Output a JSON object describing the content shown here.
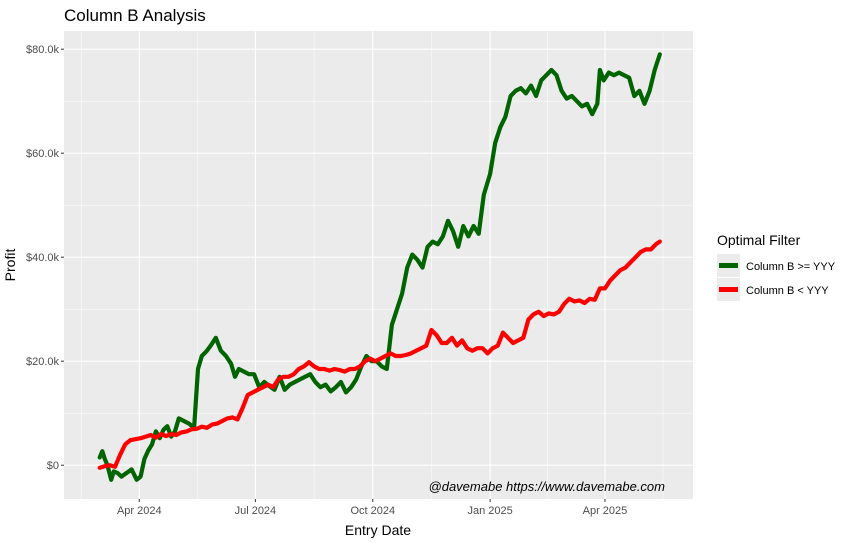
{
  "chart_data": {
    "type": "line",
    "title": "Column B Analysis",
    "xlabel": "Entry Date",
    "ylabel": "Profit",
    "caption": "@davemabe https://www.davemabe.com",
    "x_ticks": [
      {
        "date": "2024-04-01",
        "label": "Apr 2024"
      },
      {
        "date": "2024-07-01",
        "label": "Jul 2024"
      },
      {
        "date": "2024-10-01",
        "label": "Oct 2024"
      },
      {
        "date": "2025-01-01",
        "label": "Jan 2025"
      },
      {
        "date": "2025-04-01",
        "label": "Apr 2025"
      }
    ],
    "y_ticks": [
      {
        "value": 0,
        "label": "$0"
      },
      {
        "value": 20000,
        "label": "$20.0k"
      },
      {
        "value": 40000,
        "label": "$40.0k"
      },
      {
        "value": 60000,
        "label": "$60.0k"
      },
      {
        "value": 80000,
        "label": "$80.0k"
      }
    ],
    "xlim": [
      "2024-02-02",
      "2025-06-09"
    ],
    "ylim": [
      -6500,
      83500
    ],
    "grid": true,
    "legend": {
      "title": "Optimal Filter",
      "placement": "right",
      "entries": [
        "Column B >= YYY",
        "Column B < YYY"
      ]
    },
    "series": [
      {
        "name": "Column B >= YYY",
        "color": "#006400",
        "points": [
          [
            "2024-03-01",
            1500
          ],
          [
            "2024-03-03",
            2700
          ],
          [
            "2024-03-05",
            1200
          ],
          [
            "2024-03-07",
            0
          ],
          [
            "2024-03-10",
            -2800
          ],
          [
            "2024-03-12",
            -1200
          ],
          [
            "2024-03-15",
            -1500
          ],
          [
            "2024-03-18",
            -2200
          ],
          [
            "2024-03-22",
            -1500
          ],
          [
            "2024-03-26",
            -800
          ],
          [
            "2024-03-30",
            -2800
          ],
          [
            "2024-04-02",
            -2200
          ],
          [
            "2024-04-05",
            1200
          ],
          [
            "2024-04-08",
            2800
          ],
          [
            "2024-04-11",
            4000
          ],
          [
            "2024-04-14",
            6500
          ],
          [
            "2024-04-17",
            5200
          ],
          [
            "2024-04-20",
            6800
          ],
          [
            "2024-04-23",
            7500
          ],
          [
            "2024-04-26",
            5500
          ],
          [
            "2024-04-29",
            6500
          ],
          [
            "2024-05-02",
            9000
          ],
          [
            "2024-05-06",
            8500
          ],
          [
            "2024-05-10",
            8000
          ],
          [
            "2024-05-14",
            7200
          ],
          [
            "2024-05-17",
            18500
          ],
          [
            "2024-05-20",
            21000
          ],
          [
            "2024-05-24",
            22000
          ],
          [
            "2024-05-27",
            23000
          ],
          [
            "2024-05-31",
            24500
          ],
          [
            "2024-06-04",
            22000
          ],
          [
            "2024-06-08",
            21000
          ],
          [
            "2024-06-12",
            19500
          ],
          [
            "2024-06-15",
            17000
          ],
          [
            "2024-06-18",
            18500
          ],
          [
            "2024-06-22",
            18000
          ],
          [
            "2024-06-26",
            17500
          ],
          [
            "2024-06-30",
            17500
          ],
          [
            "2024-07-04",
            15000
          ],
          [
            "2024-07-08",
            16000
          ],
          [
            "2024-07-12",
            15200
          ],
          [
            "2024-07-16",
            14500
          ],
          [
            "2024-07-20",
            17000
          ],
          [
            "2024-07-24",
            14500
          ],
          [
            "2024-07-28",
            15500
          ],
          [
            "2024-08-01",
            16000
          ],
          [
            "2024-08-05",
            16500
          ],
          [
            "2024-08-09",
            17000
          ],
          [
            "2024-08-13",
            17500
          ],
          [
            "2024-08-17",
            16000
          ],
          [
            "2024-08-21",
            15000
          ],
          [
            "2024-08-25",
            15500
          ],
          [
            "2024-08-29",
            14200
          ],
          [
            "2024-09-02",
            15000
          ],
          [
            "2024-09-06",
            16000
          ],
          [
            "2024-09-10",
            14000
          ],
          [
            "2024-09-14",
            15000
          ],
          [
            "2024-09-18",
            16500
          ],
          [
            "2024-09-22",
            19000
          ],
          [
            "2024-09-26",
            21000
          ],
          [
            "2024-09-30",
            20000
          ],
          [
            "2024-10-04",
            20000
          ],
          [
            "2024-10-08",
            19000
          ],
          [
            "2024-10-12",
            18500
          ],
          [
            "2024-10-16",
            27000
          ],
          [
            "2024-10-20",
            30000
          ],
          [
            "2024-10-24",
            33000
          ],
          [
            "2024-10-28",
            38000
          ],
          [
            "2024-11-01",
            40500
          ],
          [
            "2024-11-05",
            39500
          ],
          [
            "2024-11-09",
            38000
          ],
          [
            "2024-11-13",
            42000
          ],
          [
            "2024-11-17",
            43000
          ],
          [
            "2024-11-21",
            42500
          ],
          [
            "2024-11-25",
            44000
          ],
          [
            "2024-11-29",
            47000
          ],
          [
            "2024-12-03",
            45000
          ],
          [
            "2024-12-07",
            42000
          ],
          [
            "2024-12-11",
            46000
          ],
          [
            "2024-12-15",
            44000
          ],
          [
            "2024-12-19",
            46000
          ],
          [
            "2024-12-23",
            44500
          ],
          [
            "2024-12-27",
            52000
          ],
          [
            "2025-01-01",
            56000
          ],
          [
            "2025-01-05",
            62000
          ],
          [
            "2025-01-09",
            65000
          ],
          [
            "2025-01-13",
            67000
          ],
          [
            "2025-01-17",
            71000
          ],
          [
            "2025-01-21",
            72000
          ],
          [
            "2025-01-25",
            72500
          ],
          [
            "2025-01-29",
            71500
          ],
          [
            "2025-02-02",
            73000
          ],
          [
            "2025-02-06",
            71000
          ],
          [
            "2025-02-10",
            74000
          ],
          [
            "2025-02-14",
            75000
          ],
          [
            "2025-02-18",
            76000
          ],
          [
            "2025-02-22",
            75000
          ],
          [
            "2025-02-26",
            72000
          ],
          [
            "2025-03-02",
            70500
          ],
          [
            "2025-03-06",
            71000
          ],
          [
            "2025-03-10",
            70000
          ],
          [
            "2025-03-14",
            69000
          ],
          [
            "2025-03-18",
            69500
          ],
          [
            "2025-03-22",
            67500
          ],
          [
            "2025-03-26",
            69500
          ],
          [
            "2025-03-28",
            76000
          ],
          [
            "2025-03-31",
            74000
          ],
          [
            "2025-04-04",
            75500
          ],
          [
            "2025-04-08",
            75000
          ],
          [
            "2025-04-12",
            75500
          ],
          [
            "2025-04-16",
            75000
          ],
          [
            "2025-04-20",
            74500
          ],
          [
            "2025-04-24",
            71000
          ],
          [
            "2025-04-28",
            72000
          ],
          [
            "2025-05-02",
            69500
          ],
          [
            "2025-05-06",
            72000
          ],
          [
            "2025-05-10",
            76000
          ],
          [
            "2025-05-14",
            79000
          ]
        ]
      },
      {
        "name": "Column B < YYY",
        "color": "#ff0000",
        "points": [
          [
            "2024-03-01",
            -500
          ],
          [
            "2024-03-05",
            -200
          ],
          [
            "2024-03-09",
            0
          ],
          [
            "2024-03-13",
            -300
          ],
          [
            "2024-03-17",
            2000
          ],
          [
            "2024-03-21",
            4000
          ],
          [
            "2024-03-25",
            4800
          ],
          [
            "2024-03-29",
            5000
          ],
          [
            "2024-04-02",
            5200
          ],
          [
            "2024-04-06",
            5500
          ],
          [
            "2024-04-10",
            5800
          ],
          [
            "2024-04-14",
            5300
          ],
          [
            "2024-04-18",
            6000
          ],
          [
            "2024-04-22",
            5600
          ],
          [
            "2024-04-26",
            6000
          ],
          [
            "2024-04-30",
            5800
          ],
          [
            "2024-05-04",
            6300
          ],
          [
            "2024-05-08",
            6500
          ],
          [
            "2024-05-12",
            6900
          ],
          [
            "2024-05-16",
            7000
          ],
          [
            "2024-05-20",
            7400
          ],
          [
            "2024-05-24",
            7200
          ],
          [
            "2024-05-28",
            7800
          ],
          [
            "2024-06-01",
            8000
          ],
          [
            "2024-06-05",
            8500
          ],
          [
            "2024-06-09",
            9000
          ],
          [
            "2024-06-13",
            9200
          ],
          [
            "2024-06-17",
            8800
          ],
          [
            "2024-06-21",
            11000
          ],
          [
            "2024-06-25",
            13500
          ],
          [
            "2024-06-29",
            14000
          ],
          [
            "2024-07-03",
            14500
          ],
          [
            "2024-07-07",
            15000
          ],
          [
            "2024-07-11",
            15500
          ],
          [
            "2024-07-15",
            15000
          ],
          [
            "2024-07-19",
            16500
          ],
          [
            "2024-07-23",
            17000
          ],
          [
            "2024-07-27",
            17000
          ],
          [
            "2024-07-31",
            17500
          ],
          [
            "2024-08-04",
            18500
          ],
          [
            "2024-08-08",
            19000
          ],
          [
            "2024-08-12",
            19800
          ],
          [
            "2024-08-16",
            19000
          ],
          [
            "2024-08-20",
            18500
          ],
          [
            "2024-08-24",
            18500
          ],
          [
            "2024-08-28",
            18200
          ],
          [
            "2024-09-01",
            18500
          ],
          [
            "2024-09-05",
            18300
          ],
          [
            "2024-09-09",
            18000
          ],
          [
            "2024-09-13",
            18500
          ],
          [
            "2024-09-17",
            18500
          ],
          [
            "2024-09-21",
            19000
          ],
          [
            "2024-09-25",
            20000
          ],
          [
            "2024-09-29",
            20500
          ],
          [
            "2024-10-03",
            20000
          ],
          [
            "2024-10-07",
            20500
          ],
          [
            "2024-10-11",
            21000
          ],
          [
            "2024-10-15",
            21500
          ],
          [
            "2024-10-19",
            21000
          ],
          [
            "2024-10-23",
            21000
          ],
          [
            "2024-10-27",
            21200
          ],
          [
            "2024-10-31",
            21500
          ],
          [
            "2024-11-04",
            22000
          ],
          [
            "2024-11-08",
            22500
          ],
          [
            "2024-11-12",
            23000
          ],
          [
            "2024-11-16",
            26000
          ],
          [
            "2024-11-20",
            25000
          ],
          [
            "2024-11-24",
            23500
          ],
          [
            "2024-11-28",
            23500
          ],
          [
            "2024-12-02",
            24500
          ],
          [
            "2024-12-06",
            23000
          ],
          [
            "2024-12-10",
            24000
          ],
          [
            "2024-12-14",
            22500
          ],
          [
            "2024-12-18",
            22000
          ],
          [
            "2024-12-22",
            22500
          ],
          [
            "2024-12-26",
            22500
          ],
          [
            "2024-12-30",
            21500
          ],
          [
            "2025-01-03",
            22500
          ],
          [
            "2025-01-07",
            23000
          ],
          [
            "2025-01-11",
            25500
          ],
          [
            "2025-01-15",
            24500
          ],
          [
            "2025-01-19",
            23500
          ],
          [
            "2025-01-23",
            24000
          ],
          [
            "2025-01-27",
            24500
          ],
          [
            "2025-01-31",
            28000
          ],
          [
            "2025-02-04",
            29000
          ],
          [
            "2025-02-08",
            29500
          ],
          [
            "2025-02-12",
            28700
          ],
          [
            "2025-02-16",
            29200
          ],
          [
            "2025-02-20",
            29000
          ],
          [
            "2025-02-24",
            29500
          ],
          [
            "2025-02-28",
            31000
          ],
          [
            "2025-03-04",
            32000
          ],
          [
            "2025-03-08",
            31500
          ],
          [
            "2025-03-12",
            31700
          ],
          [
            "2025-03-16",
            31200
          ],
          [
            "2025-03-20",
            32000
          ],
          [
            "2025-03-24",
            31800
          ],
          [
            "2025-03-28",
            34000
          ],
          [
            "2025-04-01",
            34000
          ],
          [
            "2025-04-05",
            35500
          ],
          [
            "2025-04-09",
            36500
          ],
          [
            "2025-04-13",
            37500
          ],
          [
            "2025-04-17",
            38000
          ],
          [
            "2025-04-21",
            39000
          ],
          [
            "2025-04-25",
            40000
          ],
          [
            "2025-04-29",
            41000
          ],
          [
            "2025-05-03",
            41500
          ],
          [
            "2025-05-07",
            41500
          ],
          [
            "2025-05-11",
            42500
          ],
          [
            "2025-05-14",
            43000
          ]
        ]
      }
    ]
  }
}
